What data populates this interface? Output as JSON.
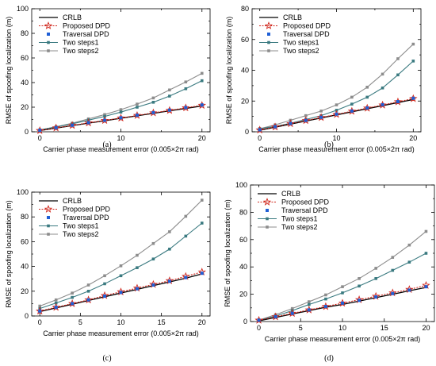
{
  "chart_data": [
    {
      "type": "line",
      "caption": "(a)",
      "xlabel": "Carrier phase measurement error (0.005×2π rad)",
      "ylabel": "RMSE of spoofing localization (m)",
      "xlim": [
        -1,
        21
      ],
      "ylim": [
        0,
        100
      ],
      "xticks": [
        0,
        10,
        20
      ],
      "yticks": [
        0,
        20,
        40,
        60,
        80,
        100
      ],
      "legend_position": "top-left",
      "x": [
        0,
        2,
        4,
        6,
        8,
        10,
        12,
        14,
        16,
        18,
        20
      ],
      "series": [
        {
          "name": "CRLB",
          "values": [
            1,
            3,
            5,
            7,
            9,
            11,
            13,
            15,
            17,
            19,
            21
          ]
        },
        {
          "name": "Proposed DPD",
          "values": [
            1,
            3.2,
            5.2,
            7.3,
            9.2,
            11.2,
            13.3,
            15.4,
            17.4,
            19.5,
            21.5
          ]
        },
        {
          "name": "Traversal DPD",
          "values": [
            1.2,
            3.3,
            5.3,
            7.4,
            9.4,
            11.4,
            13.5,
            15.6,
            17.6,
            19.7,
            21.8
          ]
        },
        {
          "name": "Two steps1",
          "values": [
            1.5,
            4,
            6.5,
            9.5,
            12.5,
            16,
            20,
            24,
            29,
            35,
            41.5
          ]
        },
        {
          "name": "Two steps2",
          "values": [
            1.5,
            4,
            7,
            10.5,
            14,
            18,
            22.5,
            27.5,
            34,
            40.5,
            47.5
          ]
        }
      ]
    },
    {
      "type": "line",
      "caption": "(b)",
      "xlabel": "Carrier phase measurement error (0.005×2π rad)",
      "ylabel": "RMSE of spoofing localization (m)",
      "xlim": [
        -1,
        21
      ],
      "ylim": [
        0,
        80
      ],
      "xticks": [
        0,
        10,
        20
      ],
      "yticks": [
        0,
        20,
        40,
        60,
        80
      ],
      "legend_position": "top-left",
      "x": [
        0,
        2,
        4,
        6,
        8,
        10,
        12,
        14,
        16,
        18,
        20
      ],
      "series": [
        {
          "name": "CRLB",
          "values": [
            1,
            3,
            5,
            7,
            9,
            11,
            13,
            15,
            17,
            19,
            21
          ]
        },
        {
          "name": "Proposed DPD",
          "values": [
            1.2,
            3.2,
            5.3,
            7.3,
            9.3,
            11.3,
            13.4,
            15.4,
            17.4,
            19.5,
            21.6
          ]
        },
        {
          "name": "Traversal DPD",
          "values": [
            1.3,
            3.3,
            5.4,
            7.4,
            9.4,
            11.5,
            13.5,
            15.5,
            17.6,
            19.6,
            21.8
          ]
        },
        {
          "name": "Two steps1",
          "values": [
            2,
            3.5,
            5.5,
            8,
            10.5,
            14,
            18,
            22.5,
            28.5,
            37,
            46
          ]
        },
        {
          "name": "Two steps2",
          "values": [
            2,
            4.5,
            7.5,
            10.5,
            13.5,
            17.5,
            22.5,
            29,
            37.5,
            47.5,
            57
          ]
        }
      ]
    },
    {
      "type": "line",
      "caption": "(c)",
      "xlabel": "Carrier phase measurement error (0.005×2π rad)",
      "ylabel": "RMSE of spoofing localization (m)",
      "xlim": [
        -1,
        21
      ],
      "ylim": [
        0,
        100
      ],
      "xticks": [
        0,
        5,
        10,
        15,
        20
      ],
      "yticks": [
        0,
        20,
        40,
        60,
        80,
        100
      ],
      "legend_position": "top-left",
      "x": [
        0,
        2,
        4,
        6,
        8,
        10,
        12,
        14,
        16,
        18,
        20
      ],
      "series": [
        {
          "name": "CRLB",
          "values": [
            3.5,
            6.5,
            9.5,
            12.5,
            15.5,
            18.5,
            21.5,
            24.5,
            27.5,
            30.5,
            34
          ]
        },
        {
          "name": "Proposed DPD",
          "values": [
            4,
            7,
            10,
            13,
            16.5,
            19.5,
            22.5,
            25.5,
            28.5,
            32,
            35.5
          ]
        },
        {
          "name": "Traversal DPD",
          "values": [
            4,
            7,
            10,
            13,
            16,
            19,
            22,
            25,
            28,
            31,
            34.5
          ]
        },
        {
          "name": "Two steps1",
          "values": [
            6,
            10.5,
            15,
            20,
            26,
            32.5,
            39,
            46,
            54,
            64.5,
            75
          ]
        },
        {
          "name": "Two steps2",
          "values": [
            8,
            13,
            18.5,
            25,
            32.5,
            40.5,
            49,
            58.5,
            68,
            80.5,
            93.5
          ]
        }
      ]
    },
    {
      "type": "line",
      "caption": "(d)",
      "xlabel": "Carrier phase measurement error (0.005×2π rad)",
      "ylabel": "RMSE of spoofing localization (m)",
      "xlim": [
        -1,
        21
      ],
      "ylim": [
        0,
        100
      ],
      "xticks": [
        0,
        5,
        10,
        15,
        20
      ],
      "yticks": [
        0,
        20,
        40,
        60,
        80,
        100
      ],
      "legend_position": "top-left",
      "x": [
        0,
        2,
        4,
        6,
        8,
        10,
        12,
        14,
        16,
        18,
        20
      ],
      "series": [
        {
          "name": "CRLB",
          "values": [
            0.5,
            3,
            5.5,
            8,
            10.5,
            12.5,
            15,
            17.5,
            20,
            22.5,
            25
          ]
        },
        {
          "name": "Proposed DPD",
          "values": [
            1,
            3.5,
            6,
            8.5,
            11,
            13.5,
            16,
            18.5,
            21,
            23.5,
            26.5
          ]
        },
        {
          "name": "Traversal DPD",
          "values": [
            1,
            3.5,
            6,
            8.5,
            11,
            13.5,
            15.5,
            18,
            20.5,
            23,
            25.5
          ]
        },
        {
          "name": "Two steps1",
          "values": [
            1,
            4,
            8,
            12.5,
            16.5,
            21,
            26,
            31.5,
            37.5,
            43.5,
            50
          ]
        },
        {
          "name": "Two steps2",
          "values": [
            1,
            5,
            9.5,
            14.5,
            19.5,
            25.5,
            31.5,
            39,
            47,
            56,
            66
          ]
        }
      ]
    }
  ],
  "style": {
    "crlb_color": "#000000",
    "proposed_color": "#d0281e",
    "traversal_color": "#1f5fd6",
    "steps1_color": "#3a7a80",
    "steps2_color": "#8c8c8c"
  }
}
